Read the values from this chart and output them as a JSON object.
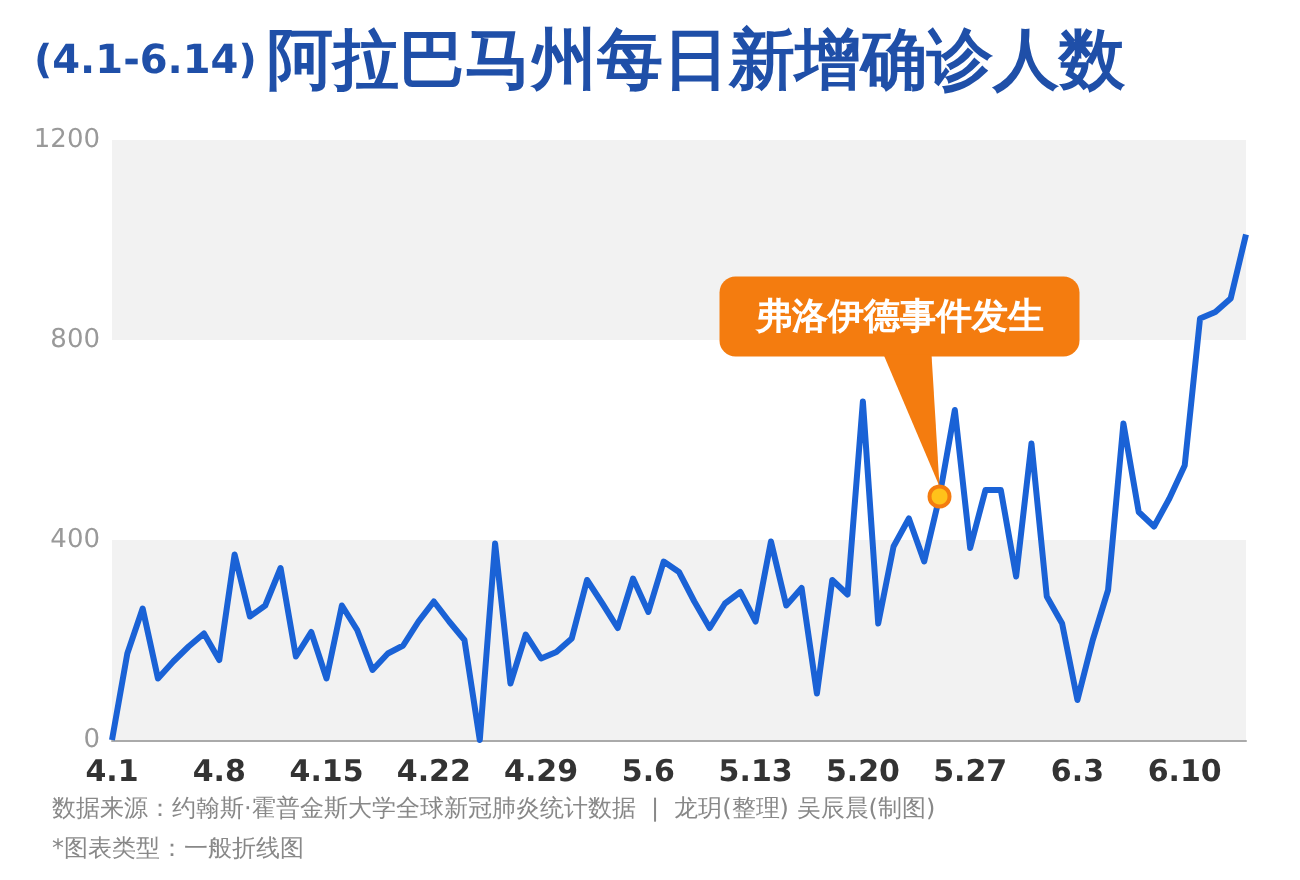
{
  "chart_data": {
    "type": "line",
    "title": "阿拉巴马州每日新增确诊人数",
    "subtitle": "(4.1-6.14)",
    "x": [
      "--04-01",
      "--04-02",
      "--04-03",
      "--04-04",
      "--04-05",
      "--04-06",
      "--04-07",
      "--04-08",
      "--04-09",
      "--04-10",
      "--04-11",
      "--04-12",
      "--04-13",
      "--04-14",
      "--04-15",
      "--04-16",
      "--04-17",
      "--04-18",
      "--04-19",
      "--04-20",
      "--04-21",
      "--04-22",
      "--04-23",
      "--04-24",
      "--04-25",
      "--04-26",
      "--04-27",
      "--04-28",
      "--04-29",
      "--04-30",
      "--05-01",
      "--05-02",
      "--05-03",
      "--05-04",
      "--05-05",
      "--05-06",
      "--05-07",
      "--05-08",
      "--05-09",
      "--05-10",
      "--05-11",
      "--05-12",
      "--05-13",
      "--05-14",
      "--05-15",
      "--05-16",
      "--05-17",
      "--05-18",
      "--05-19",
      "--05-20",
      "--05-21",
      "--05-22",
      "--05-23",
      "--05-24",
      "--05-25",
      "--05-26",
      "--05-27",
      "--05-28",
      "--05-29",
      "--05-30",
      "--05-31",
      "--06-01",
      "--06-02",
      "--06-03",
      "--06-04",
      "--06-05",
      "--06-06",
      "--06-07",
      "--06-08",
      "--06-09",
      "--06-10",
      "--06-11",
      "--06-12",
      "--06-13",
      "--06-14"
    ],
    "series": [
      {
        "color": "#1a62d6",
        "values": [
          0,
          173,
          263,
          123,
          157,
          187,
          213,
          160,
          371,
          247,
          269,
          344,
          167,
          216,
          123,
          269,
          220,
          140,
          173,
          189,
          237,
          277,
          237,
          200,
          0,
          393,
          113,
          211,
          163,
          176,
          203,
          320,
          273,
          224,
          323,
          256,
          357,
          336,
          277,
          224,
          273,
          296,
          237,
          397,
          269,
          304,
          93,
          320,
          291,
          677,
          233,
          387,
          443,
          357,
          487,
          660,
          384,
          500,
          500,
          327,
          593,
          287,
          233,
          80,
          200,
          300,
          633,
          456,
          427,
          483,
          549,
          843,
          856,
          883,
          1011
        ]
      }
    ],
    "xlim": [
      "--04-01",
      "--06-14"
    ],
    "xticks": [
      {
        "value": "--04-01",
        "label": "4.1"
      },
      {
        "value": "--04-08",
        "label": "4.8"
      },
      {
        "value": "--04-15",
        "label": "4.15"
      },
      {
        "value": "--04-22",
        "label": "4.22"
      },
      {
        "value": "--04-29",
        "label": "4.29"
      },
      {
        "value": "--05-06",
        "label": "5.6"
      },
      {
        "value": "--05-13",
        "label": "5.13"
      },
      {
        "value": "--05-20",
        "label": "5.20"
      },
      {
        "value": "--05-27",
        "label": "5.27"
      },
      {
        "value": "--06-03",
        "label": "6.3"
      },
      {
        "value": "--06-10",
        "label": "6.10"
      }
    ],
    "ylim": [
      0,
      1200
    ],
    "yticks": [
      0,
      400,
      800,
      1200
    ],
    "bands": [
      {
        "axis": "y",
        "from": 0,
        "to": 400,
        "color": "#f2f2f2"
      },
      {
        "axis": "y",
        "from": 800,
        "to": 1200,
        "color": "#f2f2f2"
      }
    ],
    "grid": false,
    "line_style": "solid",
    "annotations": [
      {
        "text": "弗洛伊德事件发生",
        "x": "--05-25",
        "y": 487
      },
      "数据来源：约翰斯·霍普金斯大学全球新冠肺炎统计数据  |  龙玥(整理) 吴辰晨(制图)",
      "*图表类型：一般折线图"
    ]
  }
}
